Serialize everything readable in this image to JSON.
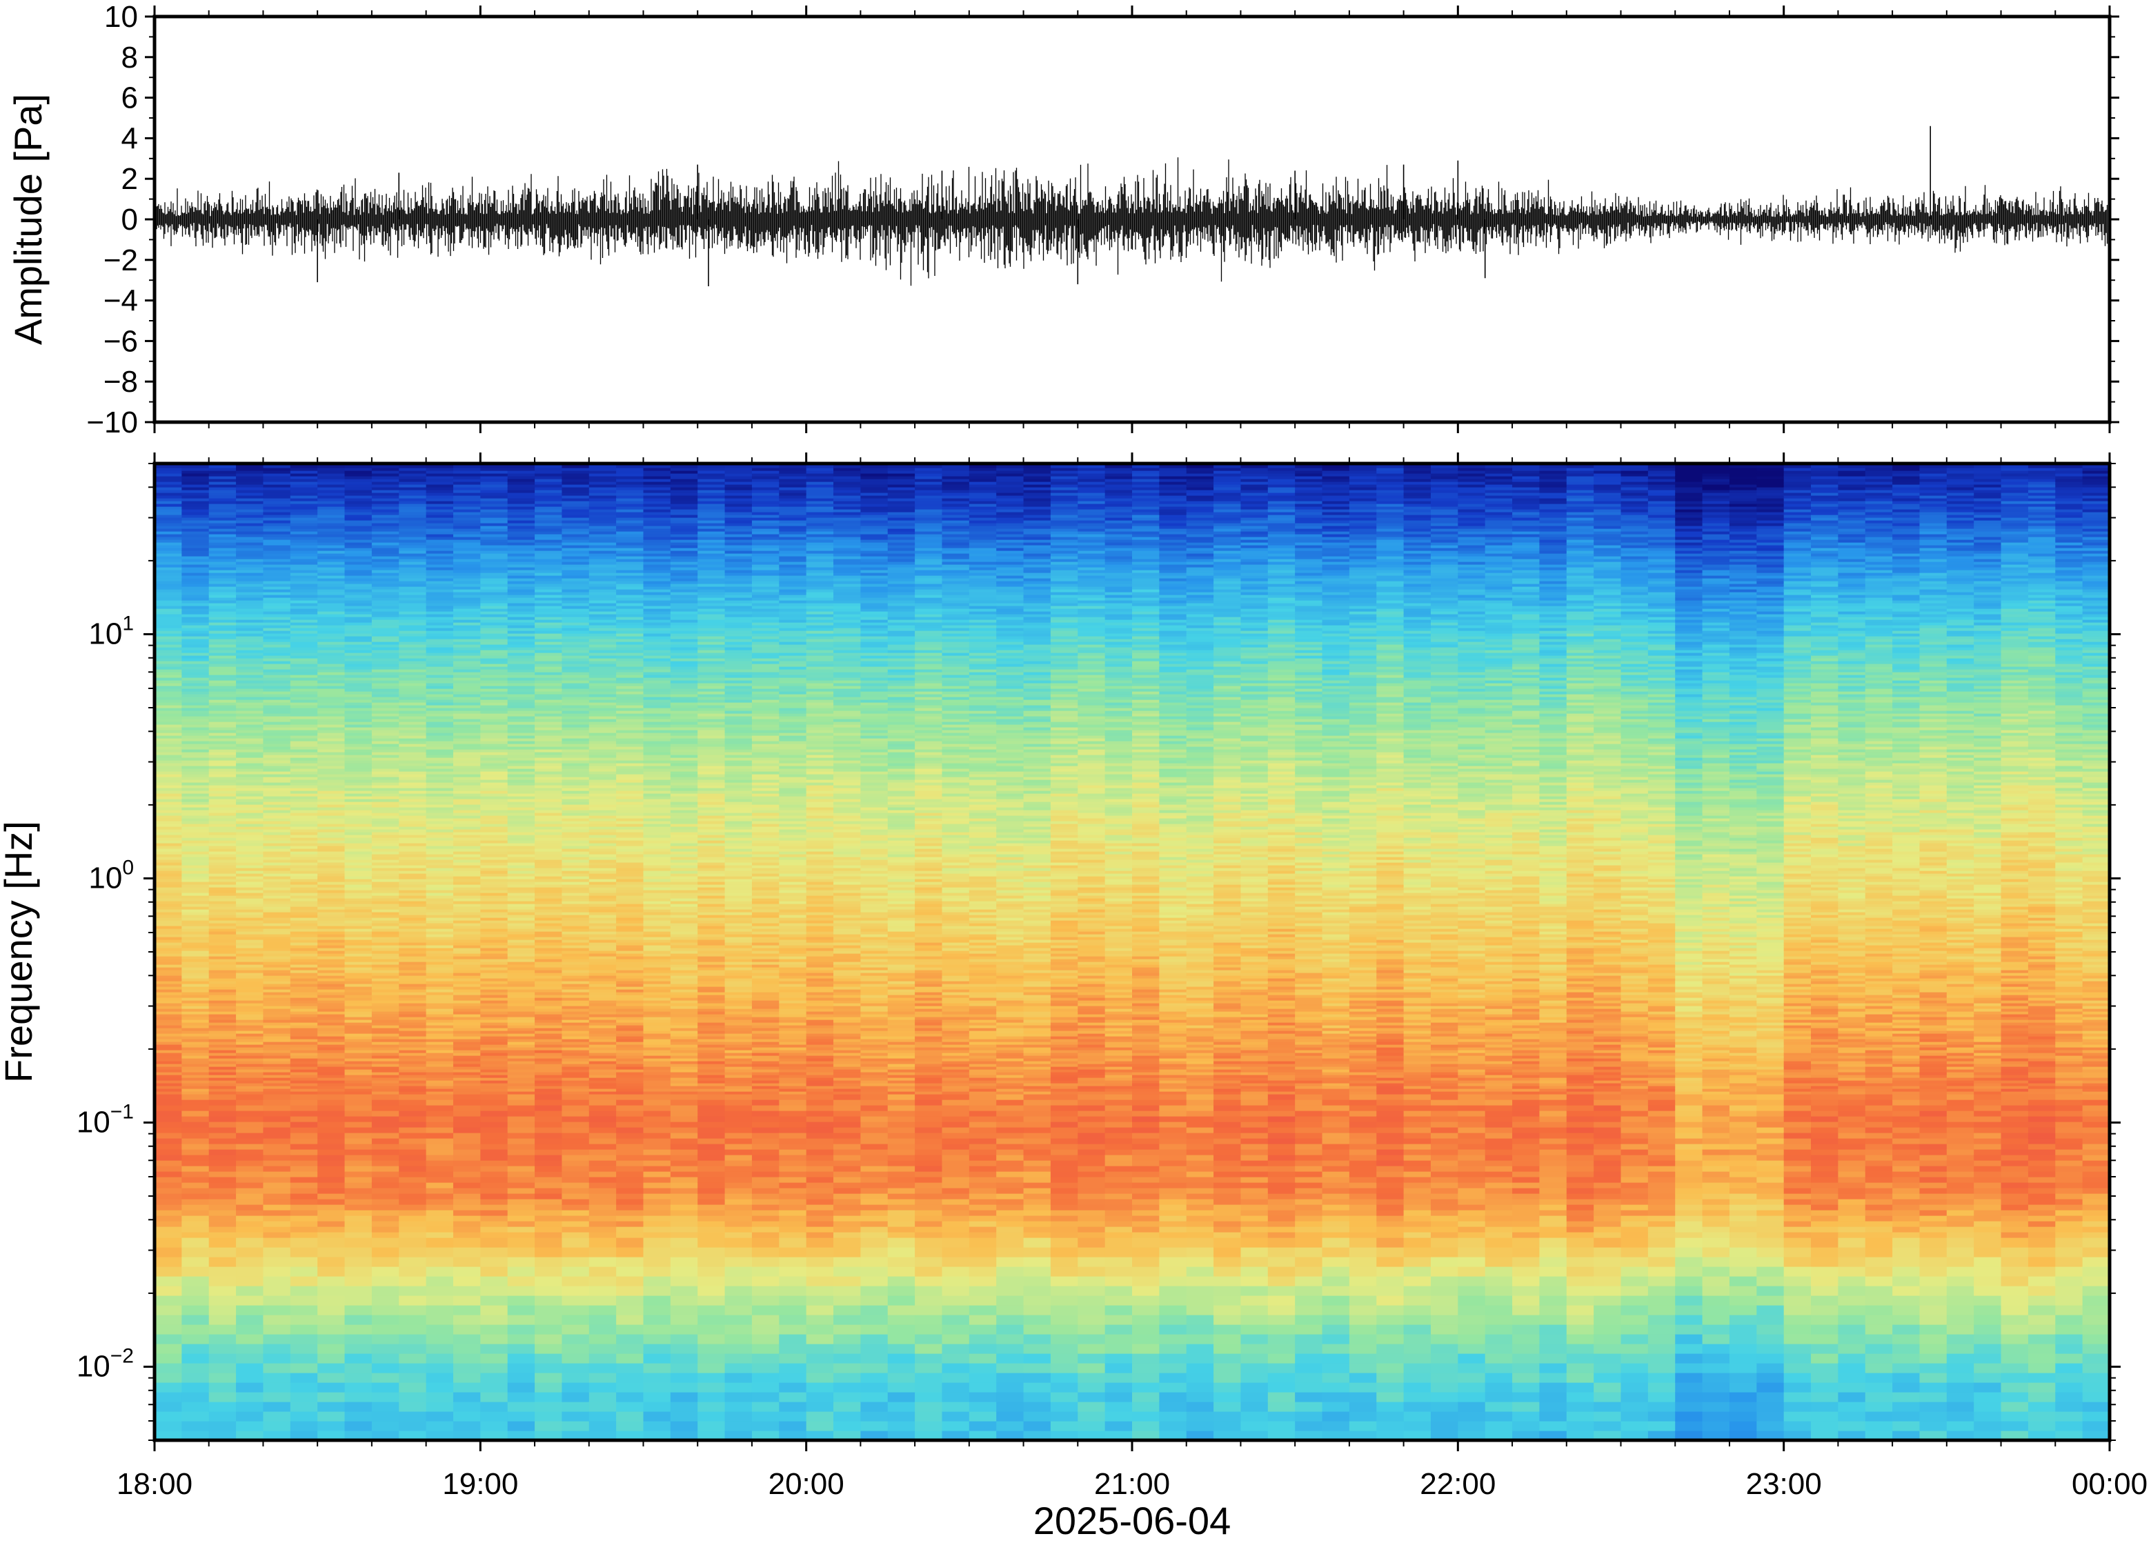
{
  "figure": {
    "date_label": "2025-06-04"
  },
  "chart_data": [
    {
      "id": "waveform",
      "type": "line",
      "ylabel": "Amplitude [Pa]",
      "ylim": [
        -10,
        10
      ],
      "yticks": [
        10,
        8,
        6,
        4,
        2,
        0,
        -2,
        -4,
        -6,
        -8,
        -10
      ],
      "ytick_labels": [
        "10",
        "8",
        "6",
        "4",
        "2",
        "0",
        "−2",
        "−4",
        "−6",
        "−8",
        "−10"
      ],
      "xlim": [
        "18:00",
        "00:00"
      ],
      "series": [
        {
          "line_color": "#000000",
          "envelope_hours": [
            18.0,
            18.5,
            19.0,
            19.5,
            20.0,
            20.5,
            21.0,
            21.5,
            22.0,
            22.5,
            22.75,
            23.0,
            23.5,
            24.0
          ],
          "envelope_abs_max_pa": [
            0.9,
            1.3,
            1.4,
            1.6,
            1.8,
            1.9,
            1.8,
            1.8,
            1.5,
            1.0,
            0.6,
            0.8,
            1.0,
            1.2
          ],
          "peak_events": [
            {
              "time": "18:30",
              "value": -3.1
            },
            {
              "time": "18:45",
              "value": 2.3
            },
            {
              "time": "19:42",
              "value": -3.3
            },
            {
              "time": "19:40",
              "value": 2.7
            },
            {
              "time": "20:25",
              "value": 2.4
            },
            {
              "time": "20:50",
              "value": -3.2
            },
            {
              "time": "21:30",
              "value": 2.4
            },
            {
              "time": "21:50",
              "value": 2.7
            },
            {
              "time": "22:00",
              "value": 2.9
            },
            {
              "time": "22:05",
              "value": -2.9
            },
            {
              "time": "23:27",
              "value": 4.6
            }
          ]
        }
      ]
    },
    {
      "id": "spectrogram",
      "type": "heatmap",
      "ylabel": "Frequency [Hz]",
      "yscale": "log",
      "ylim": [
        0.005,
        50
      ],
      "yticks": [
        0.01,
        0.1,
        1,
        10
      ],
      "ytick_labels": [
        {
          "base": "10",
          "exp": "−2"
        },
        {
          "base": "10",
          "exp": "−1"
        },
        {
          "base": "10",
          "exp": "0"
        },
        {
          "base": "10",
          "exp": "1"
        }
      ],
      "xlim": [
        "18:00",
        "00:00"
      ],
      "xticks": [
        "18:00",
        "19:00",
        "20:00",
        "21:00",
        "22:00",
        "23:00",
        "00:00"
      ],
      "xlabel": "2025-06-04",
      "colormap": "jet",
      "relative_power_profile": {
        "frequencies_hz": [
          0.005,
          0.008,
          0.012,
          0.02,
          0.03,
          0.05,
          0.1,
          0.2,
          0.5,
          1,
          2,
          5,
          10,
          20,
          30,
          50
        ],
        "level": [
          0.36,
          0.38,
          0.46,
          0.58,
          0.7,
          0.82,
          0.86,
          0.8,
          0.72,
          0.66,
          0.6,
          0.5,
          0.4,
          0.26,
          0.16,
          0.06
        ]
      },
      "quiet_interval": {
        "start": "22:40",
        "end": "23:00"
      }
    }
  ]
}
